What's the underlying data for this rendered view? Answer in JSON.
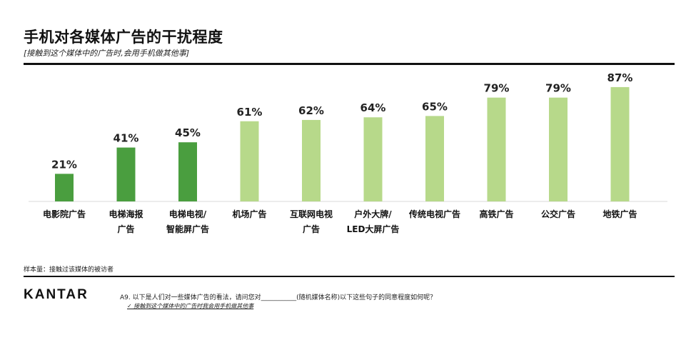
{
  "header": {
    "title": "手机对各媒体广告的干扰程度",
    "subtitle": "[接触到这个媒体中的广告时,会用手机做其他事]"
  },
  "footer": {
    "sample": "样本量：接触过该媒体的被访者",
    "logo": "KANTAR",
    "question": "A9. 以下是人们对一些媒体广告的看法，请问您对___________(随机媒体名称)以下这些句子的同意程度如何呢？",
    "note": "✓ 接触到这个媒体中的广告时我会用手机做其他事"
  },
  "colors": {
    "dark": "#4a9e3f",
    "light": "#b7d98a"
  },
  "chart_data": {
    "type": "bar",
    "title": "手机对各媒体广告的干扰程度",
    "categories": [
      [
        "电影院广告"
      ],
      [
        "电梯海报",
        "广告"
      ],
      [
        "电梯电视/",
        "智能屏广告"
      ],
      [
        "机场广告"
      ],
      [
        "互联网电视",
        "广告"
      ],
      [
        "户外大牌/",
        "LED大屏广告"
      ],
      [
        "传统电视广告"
      ],
      [
        "高铁广告"
      ],
      [
        "公交广告"
      ],
      [
        "地铁广告"
      ]
    ],
    "values": [
      21,
      41,
      45,
      61,
      62,
      64,
      65,
      79,
      79,
      87
    ],
    "value_labels": [
      "21%",
      "41%",
      "45%",
      "61%",
      "62%",
      "64%",
      "65%",
      "79%",
      "79%",
      "87%"
    ],
    "color_groups": [
      "dark",
      "dark",
      "dark",
      "light",
      "light",
      "light",
      "light",
      "light",
      "light",
      "light"
    ],
    "unit": "%",
    "ylim": [
      0,
      100
    ],
    "xlabel": "",
    "ylabel": "",
    "grid": false,
    "legend": "none"
  }
}
